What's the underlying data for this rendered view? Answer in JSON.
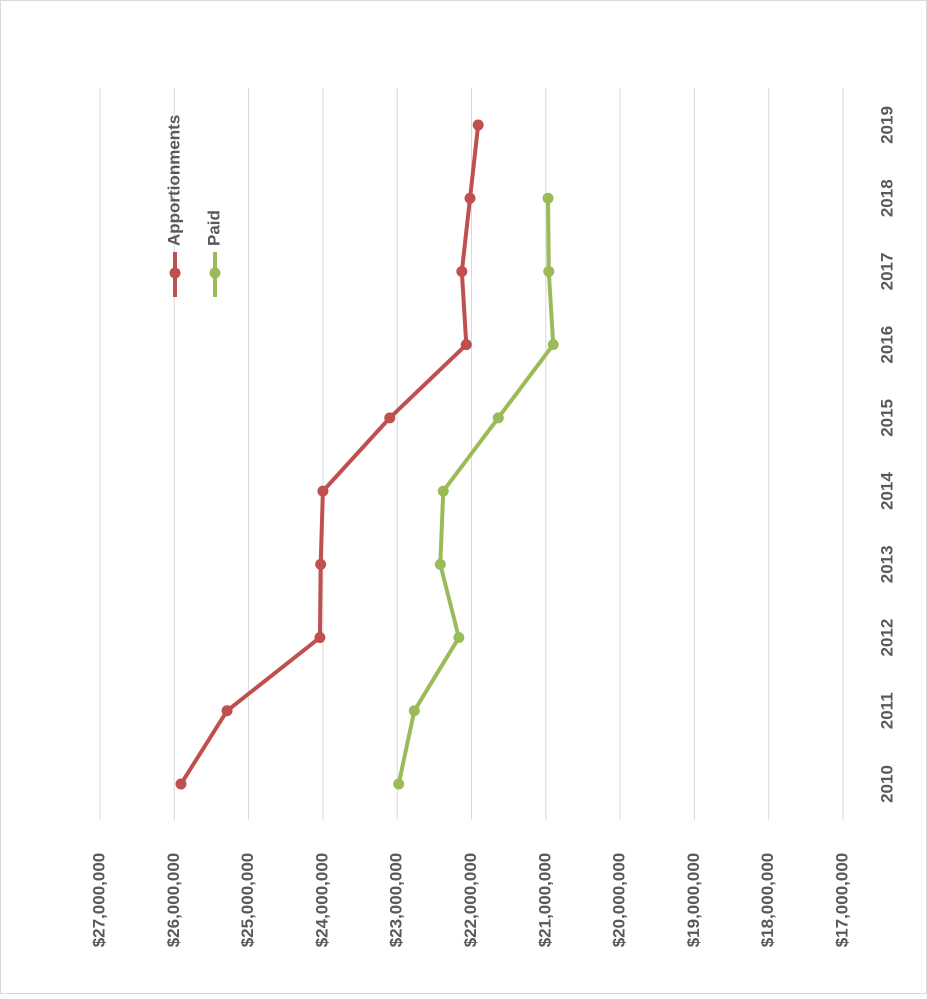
{
  "chart_data": {
    "type": "line",
    "orientation": "rotated",
    "categories": [
      "2010",
      "2011",
      "2012",
      "2013",
      "2014",
      "2015",
      "2016",
      "2017",
      "2018",
      "2019"
    ],
    "series": [
      {
        "name": "Apportionments",
        "color": "#c0504d",
        "values": [
          25910000,
          25290000,
          24040000,
          24030000,
          24000000,
          23100000,
          22070000,
          22130000,
          22020000,
          21910000
        ]
      },
      {
        "name": "Paid",
        "color": "#9bbb59",
        "values": [
          22980000,
          22770000,
          22170000,
          22420000,
          22380000,
          21640000,
          20900000,
          20960000,
          20970000,
          null
        ]
      }
    ],
    "ylim": [
      17000000,
      27000000
    ],
    "yticks": [
      {
        "value": 27000000,
        "label": "$27,000,000"
      },
      {
        "value": 26000000,
        "label": "$26,000,000"
      },
      {
        "value": 25000000,
        "label": "$25,000,000"
      },
      {
        "value": 24000000,
        "label": "$24,000,000"
      },
      {
        "value": 23000000,
        "label": "$23,000,000"
      },
      {
        "value": 22000000,
        "label": "$22,000,000"
      },
      {
        "value": 21000000,
        "label": "$21,000,000"
      },
      {
        "value": 20000000,
        "label": "$20,000,000"
      },
      {
        "value": 19000000,
        "label": "$19,000,000"
      },
      {
        "value": 18000000,
        "label": "$18,000,000"
      },
      {
        "value": 17000000,
        "label": "$17,000,000"
      }
    ],
    "grid": true
  }
}
